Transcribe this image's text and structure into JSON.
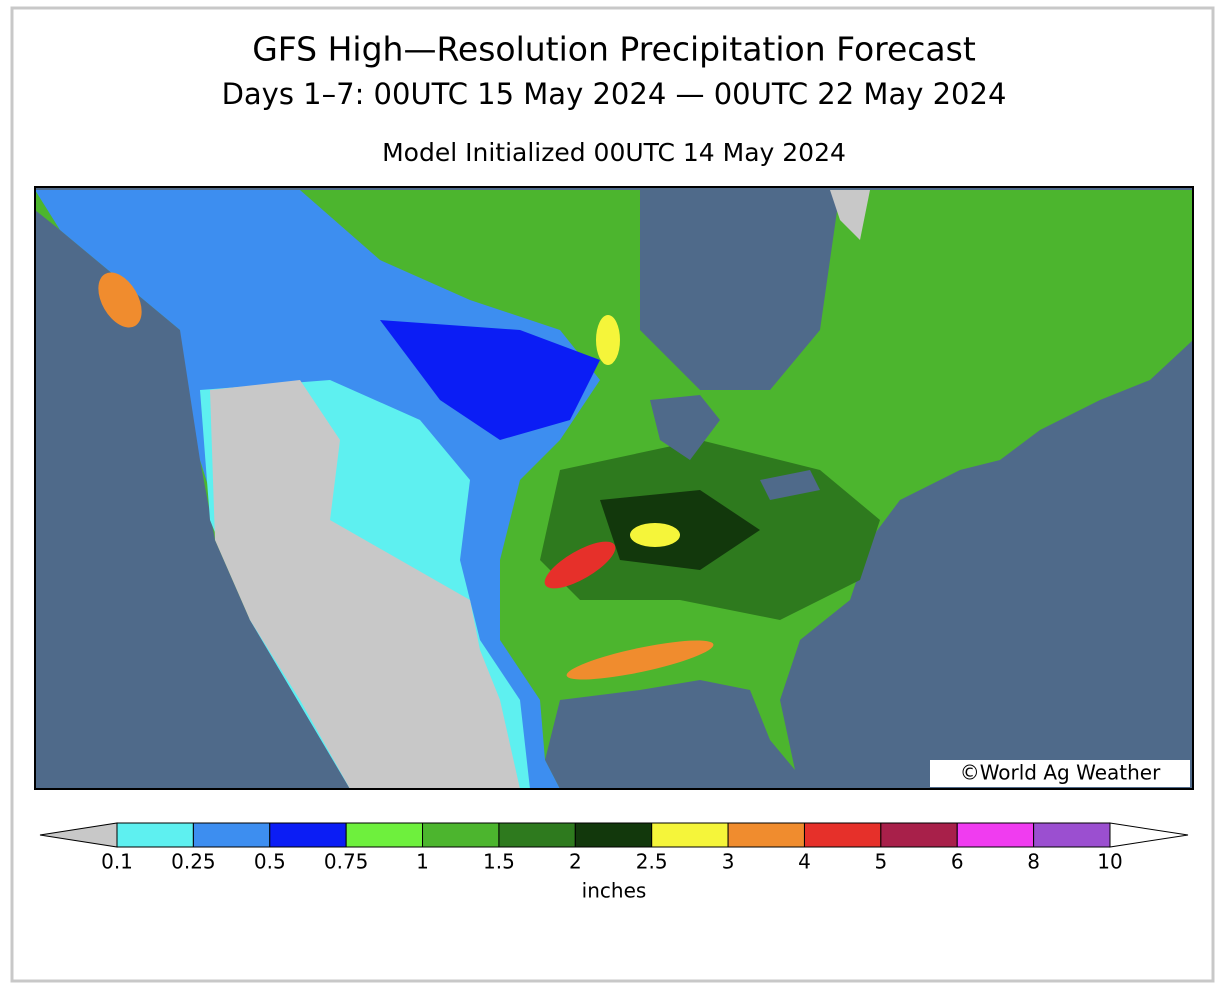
{
  "title": "GFS High—Resolution Precipitation Forecast",
  "subtitle": "Days 1–7: 00UTC 15 May 2024 — 00UTC 22 May 2024",
  "model_init": "Model Initialized 00UTC 14 May 2024",
  "watermark": "©World Ag Weather",
  "legend": {
    "ticks": [
      0.1,
      0.25,
      0.5,
      0.75,
      1,
      1.5,
      2,
      2.5,
      3,
      4,
      5,
      6,
      8,
      10
    ],
    "colors": [
      "#5ef0f0",
      "#3d8ef0",
      "#0b1df5",
      "#6ef03d",
      "#4cb52e",
      "#2e7a1e",
      "#12380c",
      "#f5f53a",
      "#f08c2e",
      "#e6302a",
      "#a8204a",
      "#f03cf0",
      "#9b4fd0"
    ],
    "under_color": "#c8c8c8",
    "over_color": "#ffffff",
    "unit": "inches"
  }
}
